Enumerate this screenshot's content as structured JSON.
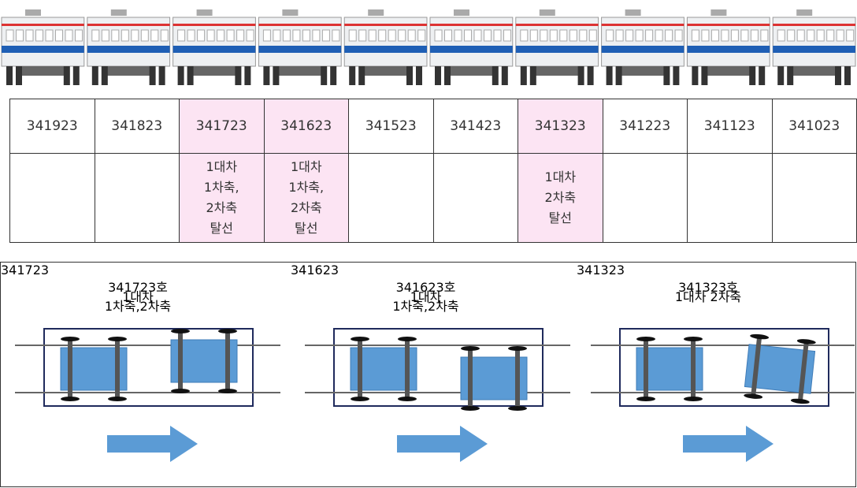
{
  "table": {
    "header": [
      "341923",
      "341823",
      "341723",
      "341623",
      "341523",
      "341423",
      "341323",
      "341223",
      "341123",
      "341023"
    ],
    "notes": [
      null,
      null,
      [
        "1대차",
        "1차축,",
        "2차축",
        "탈선"
      ],
      [
        "1대차",
        "1차축,",
        "2차축",
        "탈선"
      ],
      null,
      null,
      [
        "1대차",
        "2차축",
        "탈선"
      ],
      null,
      null,
      null
    ]
  },
  "panels": [
    {
      "header": "341723",
      "title_lines": [
        "341723호",
        "1대차",
        "1차축,2차축"
      ]
    },
    {
      "header": "341623",
      "title_lines": [
        "341623호",
        "1대차",
        "1차축,2차축"
      ]
    },
    {
      "header": "341323",
      "title_lines": [
        "341323호",
        "1대차 2차축"
      ]
    }
  ]
}
